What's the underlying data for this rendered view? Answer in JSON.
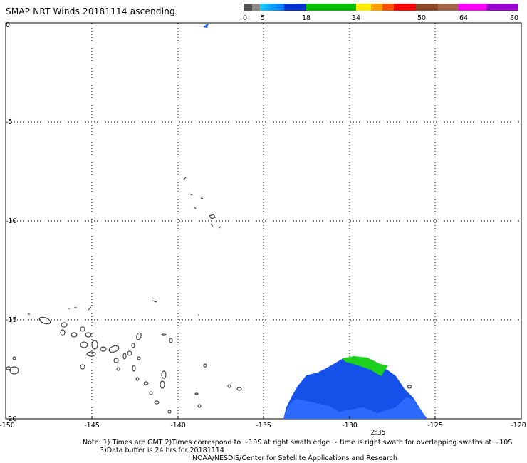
{
  "title": "SMAP NRT Winds 20181114 ascending",
  "colorbar": {
    "labels": [
      "0",
      "5",
      "18",
      "34",
      "50",
      "64",
      "80"
    ],
    "colors": [
      "#555555",
      "#888888",
      "#00a0ff",
      "#0064ff",
      "#00d000",
      "#ffee00",
      "#ff8800",
      "#ff2200",
      "#ff0000",
      "#7a3b1e",
      "#b07050",
      "#ff00ff",
      "#9a00d0"
    ]
  },
  "map": {
    "lat_labels": [
      "0",
      "-5",
      "-10",
      "-15",
      "-20"
    ],
    "lon_labels": [
      "-150",
      "-145",
      "-140",
      "-135",
      "-130",
      "-125",
      "-120"
    ],
    "swath_time": "2:35",
    "swath_colors": {
      "low": "#1550e8",
      "mid": "#2f78ff",
      "high": "#1ed01e"
    }
  },
  "notes": {
    "line1": "Note: 1) Times are GMT 2)Times correspond to ~10S at right swath edge ~ time is right swath for overlapping swaths at ~10S",
    "line2": "3)Data buffer is 24 hrs for 20181114",
    "line3": "NOAA/NESDIS/Center for Satellite Applications and Research"
  }
}
